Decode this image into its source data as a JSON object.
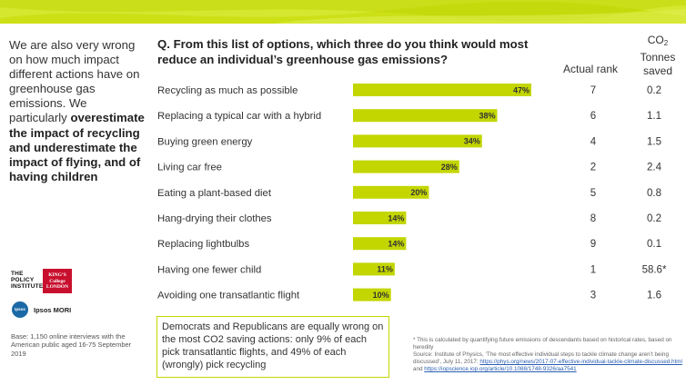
{
  "intro": {
    "plain": "We are also very wrong on how much impact different actions have on greenhouse gas emissions. We particularly ",
    "bold1": "overestimate the impact of recycling and underestimate the impact of flying, and of having children"
  },
  "question": "Q. From this list of options, which three do you think would most reduce an individual’s greenhouse gas emissions?",
  "headers": {
    "rank": "Actual rank",
    "co2_main": "CO",
    "co2_sub": "2",
    "co2_rest": "Tonnes saved"
  },
  "chart_data": {
    "type": "bar",
    "orientation": "horizontal",
    "categories": [
      "Recycling as much  as possible",
      "Replacing a typical car with a hybrid",
      "Buying green energy",
      "Living car free",
      "Eating a plant-based  diet",
      "Hang-drying  their clothes",
      "Replacing lightbulbs",
      "Having one fewer child",
      "Avoiding one transatlantic flight"
    ],
    "values": [
      47,
      38,
      34,
      28,
      20,
      14,
      14,
      11,
      10
    ],
    "value_labels": [
      "47%",
      "38%",
      "34%",
      "28%",
      "20%",
      "14%",
      "14%",
      "11%",
      "10%"
    ],
    "actual_rank": [
      "7",
      "6",
      "4",
      "2",
      "5",
      "8",
      "9",
      "1",
      "3"
    ],
    "co2_saved": [
      "0.2",
      "1.1",
      "1.5",
      "2.4",
      "0.8",
      "0.2",
      "0.1",
      "58.6*",
      "1.6"
    ],
    "xlim": [
      0,
      47
    ],
    "bar_color": "#c3d600"
  },
  "callout": "Democrats and Republicans are equally wrong on the most CO2 saving actions: only 9% of each pick transatlantic flights, and 49% of each (wrongly) pick recycling",
  "footnote": {
    "line1": "* This is calculated by quantifying future emissions of descendants based on historical rates, based on heredity",
    "line2": "Source: Institute of Physics, ‘The most effective individual steps to tackle climate change aren’t being discussed’, July 11, 2017: ",
    "link1": "https://phys.org/news/2017-07-effective-individual-tackle-climate-discussed.html",
    "and": " and ",
    "link2": "https://iopscience.iop.org/article/10.1088/1748-9326/aa7541"
  },
  "base_note": "Base: 1,150 online interviews with the American public aged 16-75 September 2019",
  "logos": {
    "policy_1": "THE",
    "policy_2": "POLICY",
    "policy_3": "INSTITUTE",
    "kings_1": "KING’S",
    "kings_2": "College",
    "kings_3": "LONDON",
    "ipsos_badge": "Ipsos",
    "ipsos_text": "Ipsos MORI"
  },
  "colors": {
    "accent": "#c3d600",
    "kings_red": "#c8102e",
    "ipsos_blue": "#1b6aa5"
  }
}
